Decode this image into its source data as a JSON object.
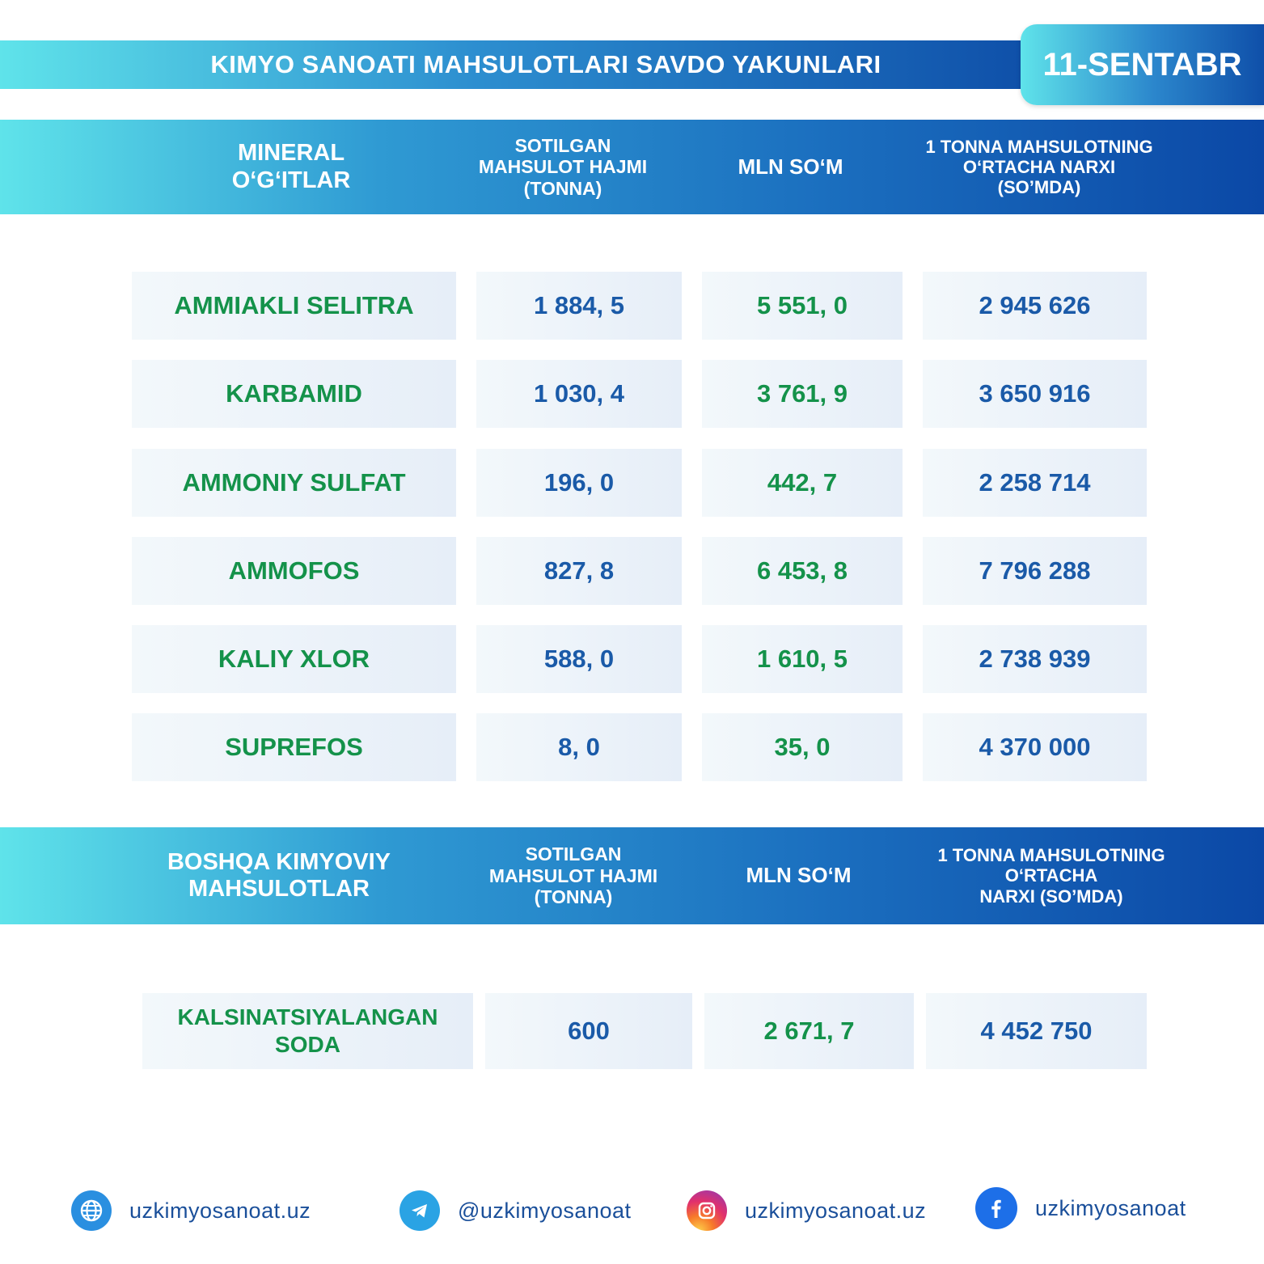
{
  "header": {
    "title": "KIMYO SANOATI MAHSULOTLARI SAVDO YAKUNLARI",
    "date": "11-SENTABR"
  },
  "section1": {
    "col1": [
      "MINERAL",
      "O‘G‘ITLAR"
    ],
    "col2": [
      "SOTILGAN",
      "MAHSULOT HAJMI",
      "(TONNA)"
    ],
    "col3": "MLN SO‘M",
    "col4": [
      "1 TONNA MAHSULOTNING",
      "O‘RTACHA NARXI",
      "(SO’MDA)"
    ],
    "rows": [
      {
        "name": "AMMIAKLI SELITRA",
        "volume": "1 884, 5",
        "mln": "5 551, 0",
        "price": "2 945 626"
      },
      {
        "name": "KARBAMID",
        "volume": "1 030, 4",
        "mln": "3 761, 9",
        "price": "3 650 916"
      },
      {
        "name": "AMMONIY SULFAT",
        "volume": "196, 0",
        "mln": "442, 7",
        "price": "2 258 714"
      },
      {
        "name": "AMMOFOS",
        "volume": "827, 8",
        "mln": "6 453, 8",
        "price": "7 796 288"
      },
      {
        "name": "KALIY XLOR",
        "volume": "588, 0",
        "mln": "1 610, 5",
        "price": "2 738 939"
      },
      {
        "name": "SUPREFOS",
        "volume": "8, 0",
        "mln": "35, 0",
        "price": "4 370 000"
      }
    ]
  },
  "section2": {
    "col1": [
      "BOSHQA KIMYOVIY",
      "MAHSULOTLAR"
    ],
    "col2": [
      "SOTILGAN",
      "MAHSULOT HAJMI",
      "(TONNA)"
    ],
    "col3": "MLN SO‘M",
    "col4": [
      "1 TONNA MAHSULOTNING",
      "O‘RTACHA",
      "NARXI (SO’MDA)"
    ],
    "rows": [
      {
        "name": [
          "KALSINATSIYALANGAN",
          "SODA"
        ],
        "volume": "600",
        "mln": "2 671, 7",
        "price": "4 452 750"
      }
    ]
  },
  "footer": {
    "website": "uzkimyosanoat.uz",
    "telegram": "@uzkimyosanoat",
    "instagram": "uzkimyosanoat.uz",
    "facebook": "uzkimyosanoat"
  },
  "colors": {
    "green_text": "#14924a",
    "blue_text": "#1a5aa8",
    "gradient_start": "#5fe3ea",
    "gradient_end": "#0b48a6"
  }
}
